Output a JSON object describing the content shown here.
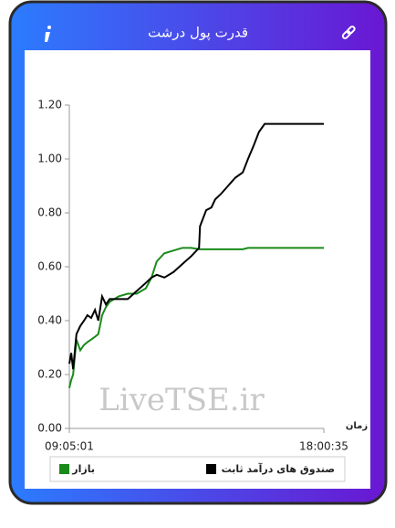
{
  "chart_data": {
    "type": "line",
    "title": "قدرت پول درشت",
    "watermark": "LiveTSE.ir",
    "x_label": "زمان",
    "x": [
      "09:05:01",
      "09:09:00",
      "09:13:00",
      "09:20:00",
      "09:28:00",
      "09:36:00",
      "09:43:00",
      "09:51:00",
      "09:59:00",
      "10:06:00",
      "10:14:00",
      "10:22:00",
      "10:30:00",
      "10:49:00",
      "11:08:00",
      "11:27:00",
      "11:46:00",
      "11:58:00",
      "12:09:00",
      "12:25:00",
      "12:44:00",
      "13:03:00",
      "13:22:00",
      "13:38:00",
      "13:40:00",
      "13:53:00",
      "14:04:00",
      "14:12:00",
      "14:24:00",
      "14:39:00",
      "14:54:00",
      "15:10:00",
      "15:21:00",
      "15:33:00",
      "15:44:00",
      "15:56:00",
      "18:00:35"
    ],
    "series": [
      {
        "name": "بازار",
        "color": "#1a8a1a",
        "values": [
          0.15,
          0.18,
          0.2,
          0.33,
          0.29,
          0.31,
          0.32,
          0.33,
          0.34,
          0.35,
          0.42,
          0.45,
          0.47,
          0.49,
          0.5,
          0.5,
          0.52,
          0.56,
          0.62,
          0.65,
          0.66,
          0.67,
          0.67,
          0.665,
          0.665,
          0.665,
          0.665,
          0.665,
          0.665,
          0.665,
          0.665,
          0.665,
          0.67,
          0.67,
          0.67,
          0.67,
          0.67
        ]
      },
      {
        "name": "صندوق های درآمد ثابت",
        "color": "#000000",
        "values": [
          0.24,
          0.28,
          0.22,
          0.35,
          0.38,
          0.4,
          0.42,
          0.41,
          0.44,
          0.4,
          0.49,
          0.46,
          0.48,
          0.48,
          0.48,
          0.51,
          0.54,
          0.56,
          0.57,
          0.56,
          0.58,
          0.61,
          0.64,
          0.67,
          0.75,
          0.81,
          0.82,
          0.85,
          0.87,
          0.9,
          0.93,
          0.95,
          1.0,
          1.05,
          1.1,
          1.13,
          1.13
        ]
      }
    ],
    "xlim": [
      "09:05:01",
      "18:00:35"
    ],
    "xticks": [
      "09:05:01",
      "18:00:35"
    ],
    "ylim": [
      0,
      1.2
    ],
    "yticks": [
      {
        "value": 0,
        "label": "0.00"
      },
      {
        "value": 0.2,
        "label": "0.20"
      },
      {
        "value": 0.4,
        "label": "0.40"
      },
      {
        "value": 0.6,
        "label": "0.60"
      },
      {
        "value": 0.8,
        "label": "0.80"
      },
      {
        "value": 1,
        "label": "1.00"
      },
      {
        "value": 1.2,
        "label": "1.20"
      }
    ]
  }
}
